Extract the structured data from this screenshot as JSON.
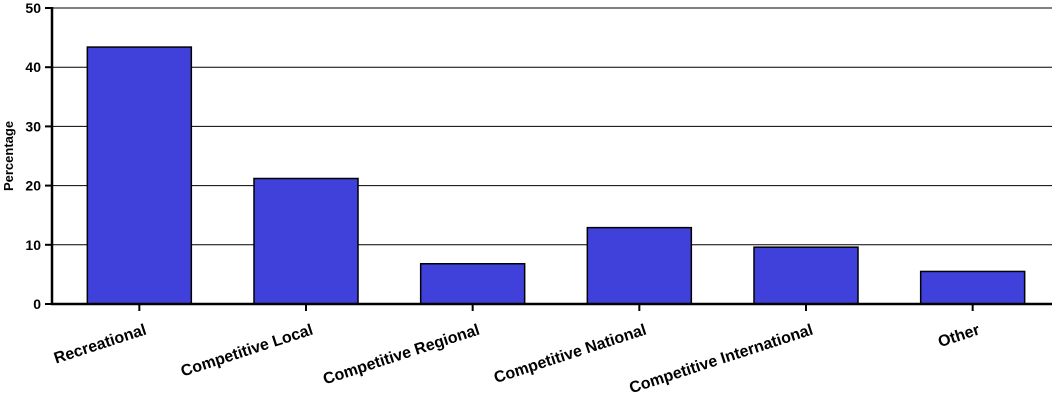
{
  "chart_data": {
    "type": "bar",
    "title": "",
    "xlabel": "",
    "ylabel": "Percentage",
    "ylim": [
      0,
      50
    ],
    "yticks": [
      0,
      10,
      20,
      30,
      40,
      50
    ],
    "grid": true,
    "categories": [
      "Recreational",
      "Competitive Local",
      "Competitive Regional",
      "Competitive National",
      "Competitive International",
      "Other"
    ],
    "values": [
      43.4,
      21.2,
      6.8,
      12.9,
      9.6,
      5.5
    ],
    "colors": {
      "bar_fill": "#4040DB",
      "bar_stroke": "#000000",
      "grid": "#000000",
      "axis": "#000000"
    }
  }
}
